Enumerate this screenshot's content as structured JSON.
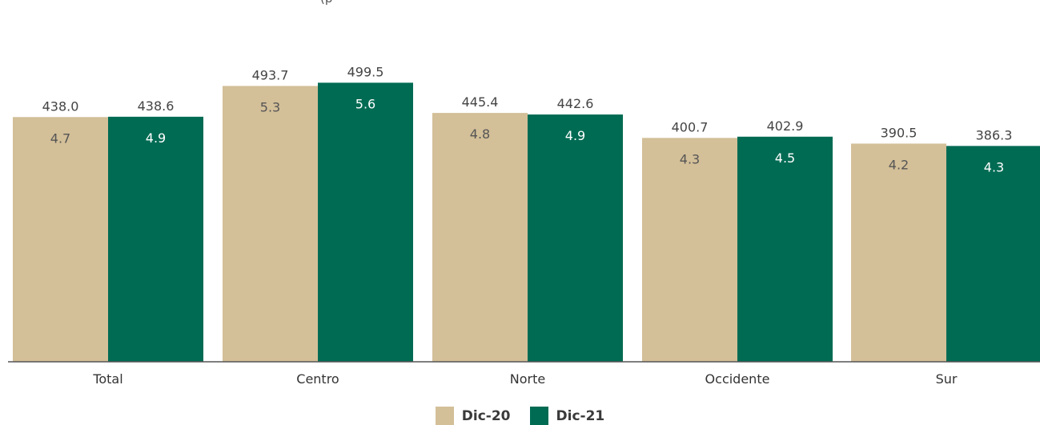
{
  "chart_data": {
    "type": "bar",
    "subtitle": "(p",
    "categories": [
      "Total",
      "Centro",
      "Norte",
      "Occidente",
      "Sur"
    ],
    "series": [
      {
        "name": "Dic-20",
        "values": [
          438.0,
          493.7,
          445.4,
          400.7,
          390.5
        ],
        "inner_labels": [
          "4.7",
          "5.3",
          "4.8",
          "4.3",
          "4.2"
        ],
        "color": "#d3bf98"
      },
      {
        "name": "Dic-21",
        "values": [
          438.6,
          499.5,
          442.6,
          402.9,
          386.3
        ],
        "inner_labels": [
          "4.9",
          "5.6",
          "4.9",
          "4.5",
          "4.3"
        ],
        "color": "#006b53"
      }
    ],
    "value_labels": [
      [
        "438.0",
        "493.7",
        "445.4",
        "400.7",
        "390.5"
      ],
      [
        "438.6",
        "499.5",
        "442.6",
        "402.9",
        "386.3"
      ]
    ],
    "ylim": [
      0,
      530
    ],
    "legend_position": "bottom-center",
    "grid": false
  }
}
